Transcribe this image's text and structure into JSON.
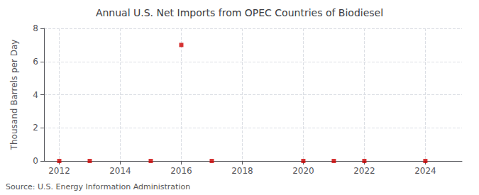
{
  "chart_data": {
    "type": "scatter",
    "title": "Annual U.S. Net Imports from OPEC Countries of Biodiesel",
    "ylabel": "Thousand Barrels per Day",
    "annotation": "Source: U.S. Energy Information Administration",
    "x": [
      2012,
      2013,
      2015,
      2016,
      2017,
      2020,
      2021,
      2022,
      2024
    ],
    "values": [
      0.0,
      0.0,
      0.0,
      7.0,
      0.0,
      0.0,
      0.0,
      0.0,
      0.0
    ],
    "color": "#cc0000",
    "marker": "square",
    "xlim": [
      2011.5,
      2025.2
    ],
    "ylim": [
      0,
      8
    ],
    "xticks": [
      2012,
      2014,
      2016,
      2018,
      2020,
      2022,
      2024
    ],
    "yticks": [
      0,
      2,
      4,
      6,
      8
    ],
    "grid": true
  }
}
